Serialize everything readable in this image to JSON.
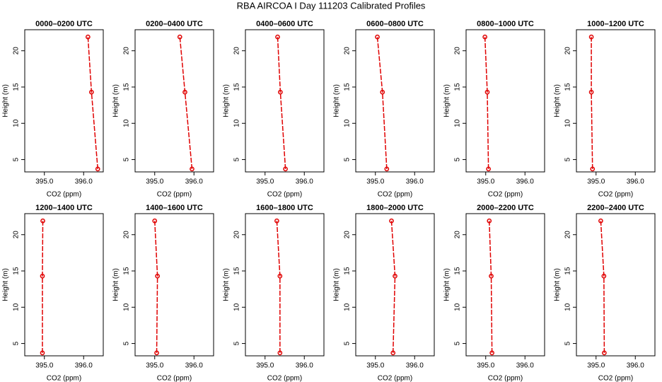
{
  "title": "RBA AIRCOA I  Day 111203  Calibrated Profiles",
  "chart_data": [
    {
      "type": "line",
      "title": "0000–0200 UTC",
      "x_label": "CO2 (ppm)",
      "y_label": "Height (m)",
      "color": "#e00000",
      "x": [
        396.36,
        396.2,
        396.11
      ],
      "values": [
        3.7,
        14.3,
        21.9
      ],
      "xlim": [
        394.5,
        396.5
      ],
      "xticks": [
        {
          "value": 395,
          "label": "395.0"
        },
        {
          "value": 396,
          "label": "396.0"
        }
      ],
      "ylim": [
        3.3,
        22.9
      ],
      "yticks": [
        5,
        10,
        15,
        20
      ]
    },
    {
      "type": "line",
      "title": "0200–0400 UTC",
      "x_label": "CO2 (ppm)",
      "y_label": "Height (m)",
      "color": "#e00000",
      "x": [
        395.95,
        395.77,
        395.64
      ],
      "values": [
        3.7,
        14.3,
        21.9
      ],
      "xlim": [
        394.5,
        396.5
      ],
      "xticks": [
        {
          "value": 395,
          "label": "395.0"
        },
        {
          "value": 396,
          "label": "396.0"
        }
      ],
      "ylim": [
        3.3,
        22.9
      ],
      "yticks": [
        5,
        10,
        15,
        20
      ]
    },
    {
      "type": "line",
      "title": "0400–0600 UTC",
      "x_label": "CO2 (ppm)",
      "y_label": "Height (m)",
      "color": "#e00000",
      "x": [
        395.52,
        395.39,
        395.32
      ],
      "values": [
        3.7,
        14.3,
        21.9
      ],
      "xlim": [
        394.5,
        396.5
      ],
      "xticks": [
        {
          "value": 395,
          "label": "395.0"
        },
        {
          "value": 396,
          "label": "396.0"
        }
      ],
      "ylim": [
        3.3,
        22.9
      ],
      "yticks": [
        5,
        10,
        15,
        20
      ]
    },
    {
      "type": "line",
      "title": "0600–0800 UTC",
      "x_label": "CO2 (ppm)",
      "y_label": "Height (m)",
      "color": "#e00000",
      "x": [
        395.29,
        395.18,
        395.05
      ],
      "values": [
        3.7,
        14.3,
        21.9
      ],
      "xlim": [
        394.5,
        396.5
      ],
      "xticks": [
        {
          "value": 395,
          "label": "395.0"
        },
        {
          "value": 396,
          "label": "396.0"
        }
      ],
      "ylim": [
        3.3,
        22.9
      ],
      "yticks": [
        5,
        10,
        15,
        20
      ]
    },
    {
      "type": "line",
      "title": "0800–1000 UTC",
      "x_label": "CO2 (ppm)",
      "y_label": "Height (m)",
      "color": "#e00000",
      "x": [
        395.07,
        395.04,
        394.98
      ],
      "values": [
        3.7,
        14.3,
        21.9
      ],
      "xlim": [
        394.5,
        396.5
      ],
      "xticks": [
        {
          "value": 395,
          "label": "395.0"
        },
        {
          "value": 396,
          "label": "396.0"
        }
      ],
      "ylim": [
        3.3,
        22.9
      ],
      "yticks": [
        5,
        10,
        15,
        20
      ]
    },
    {
      "type": "line",
      "title": "1000–1200 UTC",
      "x_label": "CO2 (ppm)",
      "y_label": "Height (m)",
      "color": "#e00000",
      "x": [
        394.91,
        394.88,
        394.88
      ],
      "values": [
        3.7,
        14.3,
        21.9
      ],
      "xlim": [
        394.5,
        396.5
      ],
      "xticks": [
        {
          "value": 395,
          "label": "395.0"
        },
        {
          "value": 396,
          "label": "396.0"
        }
      ],
      "ylim": [
        3.3,
        22.9
      ],
      "yticks": [
        5,
        10,
        15,
        20
      ]
    },
    {
      "type": "line",
      "title": "1200–1400 UTC",
      "x_label": "CO2 (ppm)",
      "y_label": "Height (m)",
      "color": "#e00000",
      "x": [
        394.95,
        394.95,
        394.96
      ],
      "values": [
        3.7,
        14.3,
        21.9
      ],
      "xlim": [
        394.5,
        396.5
      ],
      "xticks": [
        {
          "value": 395,
          "label": "395.0"
        },
        {
          "value": 396,
          "label": "396.0"
        }
      ],
      "ylim": [
        3.3,
        22.9
      ],
      "yticks": [
        5,
        10,
        15,
        20
      ]
    },
    {
      "type": "line",
      "title": "1400–1600 UTC",
      "x_label": "CO2 (ppm)",
      "y_label": "Height (m)",
      "color": "#e00000",
      "x": [
        395.05,
        395.07,
        395.0
      ],
      "values": [
        3.7,
        14.3,
        21.9
      ],
      "xlim": [
        394.5,
        396.5
      ],
      "xticks": [
        {
          "value": 395,
          "label": "395.0"
        },
        {
          "value": 396,
          "label": "396.0"
        }
      ],
      "ylim": [
        3.3,
        22.9
      ],
      "yticks": [
        5,
        10,
        15,
        20
      ]
    },
    {
      "type": "line",
      "title": "1600–1800 UTC",
      "x_label": "CO2 (ppm)",
      "y_label": "Height (m)",
      "color": "#e00000",
      "x": [
        395.38,
        395.38,
        395.3
      ],
      "values": [
        3.7,
        14.3,
        21.9
      ],
      "xlim": [
        394.5,
        396.5
      ],
      "xticks": [
        {
          "value": 395,
          "label": "395.0"
        },
        {
          "value": 396,
          "label": "396.0"
        }
      ],
      "ylim": [
        3.3,
        22.9
      ],
      "yticks": [
        5,
        10,
        15,
        20
      ]
    },
    {
      "type": "line",
      "title": "1800–2000 UTC",
      "x_label": "CO2 (ppm)",
      "y_label": "Height (m)",
      "color": "#e00000",
      "x": [
        395.45,
        395.5,
        395.41
      ],
      "values": [
        3.7,
        14.3,
        21.9
      ],
      "xlim": [
        394.5,
        396.5
      ],
      "xticks": [
        {
          "value": 395,
          "label": "395.0"
        },
        {
          "value": 396,
          "label": "396.0"
        }
      ],
      "ylim": [
        3.3,
        22.9
      ],
      "yticks": [
        5,
        10,
        15,
        20
      ]
    },
    {
      "type": "line",
      "title": "2000–2200 UTC",
      "x_label": "CO2 (ppm)",
      "y_label": "Height (m)",
      "color": "#e00000",
      "x": [
        395.16,
        395.14,
        395.09
      ],
      "values": [
        3.7,
        14.3,
        21.9
      ],
      "xlim": [
        394.5,
        396.5
      ],
      "xticks": [
        {
          "value": 395,
          "label": "395.0"
        },
        {
          "value": 396,
          "label": "396.0"
        }
      ],
      "ylim": [
        3.3,
        22.9
      ],
      "yticks": [
        5,
        10,
        15,
        20
      ]
    },
    {
      "type": "line",
      "title": "2200–2400 UTC",
      "x_label": "CO2 (ppm)",
      "y_label": "Height (m)",
      "color": "#e00000",
      "x": [
        395.21,
        395.2,
        395.12
      ],
      "values": [
        3.7,
        14.3,
        21.9
      ],
      "xlim": [
        394.5,
        396.5
      ],
      "xticks": [
        {
          "value": 395,
          "label": "395.0"
        },
        {
          "value": 396,
          "label": "396.0"
        }
      ],
      "ylim": [
        3.3,
        22.9
      ],
      "yticks": [
        5,
        10,
        15,
        20
      ]
    }
  ]
}
